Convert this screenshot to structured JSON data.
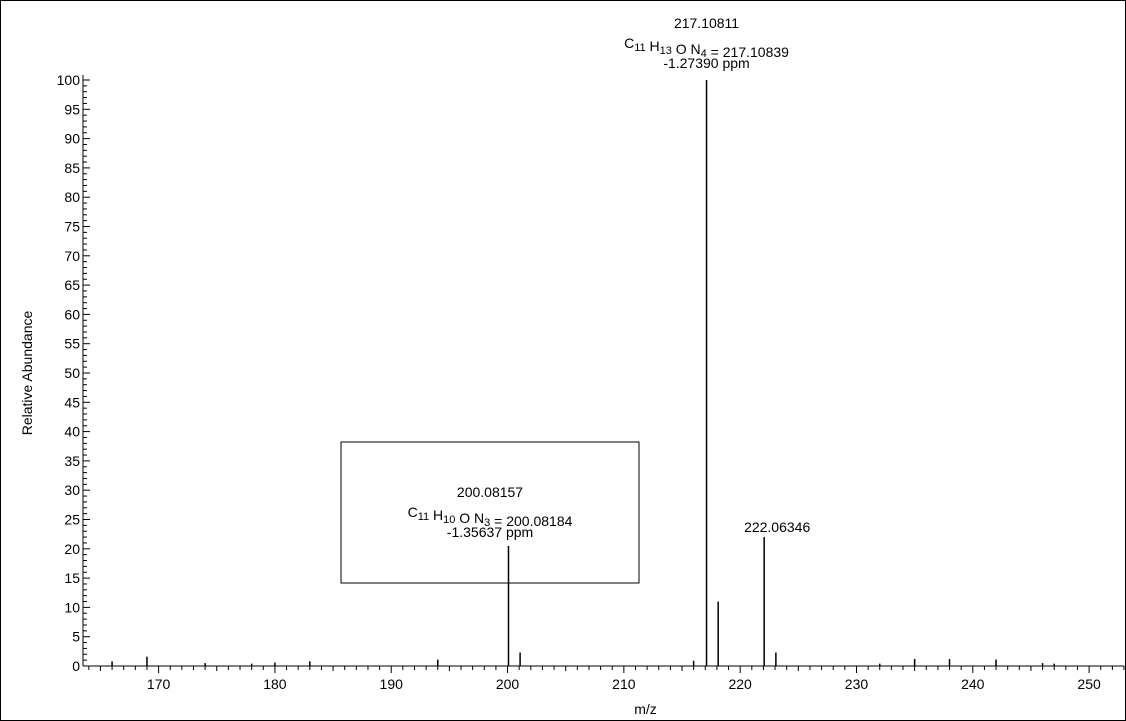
{
  "chart_data": {
    "type": "bar",
    "xlabel": "m/z",
    "ylabel": "Relative Abundance",
    "xlim": [
      163.5,
      253
    ],
    "ylim": [
      0,
      100
    ],
    "x_ticks": [
      170,
      180,
      190,
      200,
      210,
      220,
      230,
      240,
      250
    ],
    "y_ticks": [
      0,
      5,
      10,
      15,
      20,
      25,
      30,
      35,
      40,
      45,
      50,
      55,
      60,
      65,
      70,
      75,
      80,
      85,
      90,
      95,
      100
    ],
    "peaks": [
      {
        "mz": 166.0,
        "intensity": 0.8
      },
      {
        "mz": 169.0,
        "intensity": 1.6
      },
      {
        "mz": 174.0,
        "intensity": 0.5
      },
      {
        "mz": 178.0,
        "intensity": 0.4
      },
      {
        "mz": 180.0,
        "intensity": 0.6
      },
      {
        "mz": 183.0,
        "intensity": 0.8
      },
      {
        "mz": 194.0,
        "intensity": 1.1
      },
      {
        "mz": 200.08157,
        "intensity": 20.5
      },
      {
        "mz": 201.08,
        "intensity": 2.3
      },
      {
        "mz": 216.0,
        "intensity": 0.9
      },
      {
        "mz": 217.10811,
        "intensity": 100
      },
      {
        "mz": 218.11,
        "intensity": 11.0
      },
      {
        "mz": 222.06346,
        "intensity": 22.0
      },
      {
        "mz": 223.07,
        "intensity": 2.3
      },
      {
        "mz": 232.0,
        "intensity": 0.4
      },
      {
        "mz": 235.0,
        "intensity": 1.2
      },
      {
        "mz": 238.0,
        "intensity": 1.2
      },
      {
        "mz": 242.0,
        "intensity": 1.1
      },
      {
        "mz": 246.0,
        "intensity": 0.5
      },
      {
        "mz": 247.0,
        "intensity": 0.4
      }
    ],
    "annotations": [
      {
        "id": "peak-217",
        "mz": 217.10811,
        "lines": [
          [
            {
              "t": "217.10811"
            }
          ],
          [
            {
              "t": "C"
            },
            {
              "t": "11",
              "sub": true
            },
            {
              "t": " H"
            },
            {
              "t": "13",
              "sub": true
            },
            {
              "t": " O N"
            },
            {
              "t": "4",
              "sub": true
            },
            {
              "t": " = 217.10839"
            }
          ],
          [
            {
              "t": "-1.27390 ppm"
            }
          ]
        ]
      },
      {
        "id": "peak-200",
        "mz": 200.08157,
        "boxed": true,
        "lines": [
          [
            {
              "t": "200.08157"
            }
          ],
          [
            {
              "t": "C"
            },
            {
              "t": "11",
              "sub": true
            },
            {
              "t": " H"
            },
            {
              "t": "10",
              "sub": true
            },
            {
              "t": " O N"
            },
            {
              "t": "3",
              "sub": true
            },
            {
              "t": " = 200.08184"
            }
          ],
          [
            {
              "t": "-1.35637 ppm"
            }
          ]
        ]
      },
      {
        "id": "peak-222",
        "mz": 222.06346,
        "lines": [
          [
            {
              "t": "222.06346"
            }
          ]
        ]
      }
    ]
  }
}
